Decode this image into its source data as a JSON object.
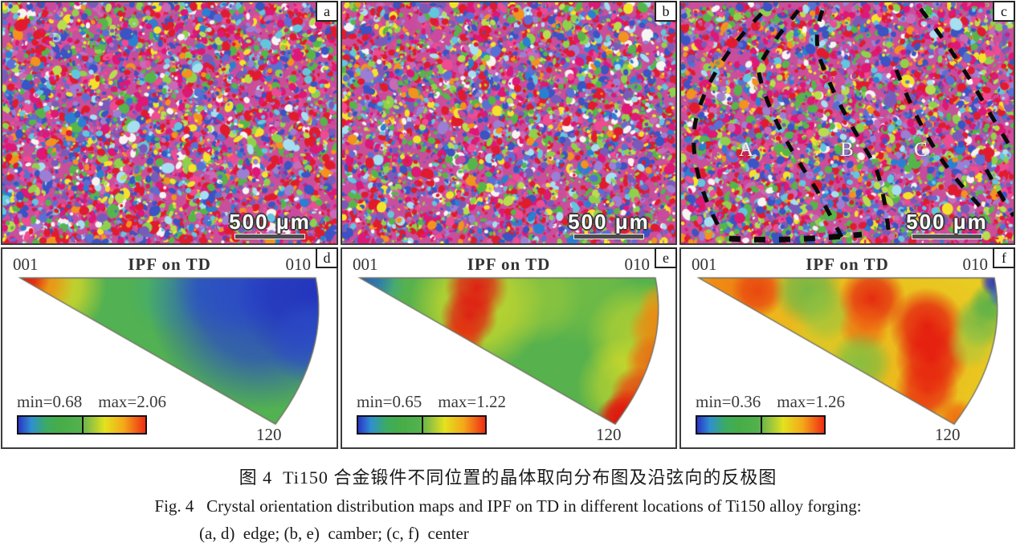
{
  "figure": {
    "ebsd_panels": [
      {
        "letter": "a",
        "scale_bar": "500 μm"
      },
      {
        "letter": "b",
        "scale_bar": "500 μm"
      },
      {
        "letter": "c",
        "scale_bar": "500 μm",
        "region_labels": [
          "A",
          "B",
          "C"
        ]
      }
    ],
    "ipf_panels": [
      {
        "letter": "d",
        "title": "IPF on TD",
        "corner_top_left": "001",
        "corner_top_right": "010",
        "corner_bottom": "120",
        "min_label": "min=0.68",
        "max_label": "max=2.06"
      },
      {
        "letter": "e",
        "title": "IPF on TD",
        "corner_top_left": "001",
        "corner_top_right": "010",
        "corner_bottom": "120",
        "min_label": "min=0.65",
        "max_label": "max=1.22"
      },
      {
        "letter": "f",
        "title": "IPF on TD",
        "corner_top_left": "001",
        "corner_top_right": "010",
        "corner_bottom": "120",
        "min_label": "min=0.36",
        "max_label": "max=1.26"
      }
    ],
    "caption": {
      "line_zh": "图 4  Ti150 合金锻件不同位置的晶体取向分布图及沿弦向的反极图",
      "line_en": "Fig. 4   Crystal orientation distribution maps and IPF on TD in different locations of Ti150 alloy forging:",
      "line_items": "(a, d)  edge; (b, e)  camber; (c, f)  center"
    }
  },
  "chart_data": [
    {
      "type": "heatmap",
      "panel": "a",
      "subtype": "EBSD orientation map",
      "location": "edge",
      "scale_bar": "500 μm",
      "appearance": "fine equiaxed multicolored grains (red/magenta/blue/green/purple speckle)"
    },
    {
      "type": "heatmap",
      "panel": "b",
      "subtype": "EBSD orientation map",
      "location": "camber",
      "scale_bar": "500 μm",
      "appearance": "fine equiaxed multicolored grains"
    },
    {
      "type": "heatmap",
      "panel": "c",
      "subtype": "EBSD orientation map",
      "location": "center",
      "scale_bar": "500 μm",
      "regions": [
        "A",
        "B",
        "C"
      ],
      "appearance": "multicolored grains with black dashed diagonal bands outlining regions A, B, C"
    },
    {
      "type": "heatmap",
      "panel": "d",
      "subtype": "inverse pole figure",
      "title": "IPF on TD",
      "corners": {
        "top_left": "001",
        "top_right": "010",
        "bottom": "120"
      },
      "min": 0.68,
      "max": 2.06,
      "intensity_field": "maximum (red) at 001 corner, blue low region toward 010, green elsewhere",
      "colorbar": [
        "#2a35c8",
        "#3cab62",
        "#e3e21e",
        "#ef2c14"
      ]
    },
    {
      "type": "heatmap",
      "panel": "e",
      "subtype": "inverse pole figure",
      "title": "IPF on TD",
      "corners": {
        "top_left": "001",
        "top_right": "010",
        "bottom": "120"
      },
      "min": 0.65,
      "max": 1.22,
      "intensity_field": "blue at 001 corner, red band between 001 and center, red along outer arc down to 120 tip, green field",
      "colorbar": [
        "#2a35c8",
        "#3cab62",
        "#e3e21e",
        "#ef2c14"
      ]
    },
    {
      "type": "heatmap",
      "panel": "f",
      "subtype": "inverse pole figure",
      "title": "IPF on TD",
      "corners": {
        "top_left": "001",
        "top_right": "010",
        "bottom": "120"
      },
      "min": 0.36,
      "max": 1.26,
      "intensity_field": "yellow-orange field with red vertical bands center-right, green patches, blue strip at 010 corner",
      "colorbar": [
        "#2a35c8",
        "#3cab62",
        "#e3e21e",
        "#ef2c14"
      ]
    }
  ],
  "colors": {
    "panel_border": "#3c3c3c",
    "colorbar_gradient": [
      "#2a35c8",
      "#2f8fd0",
      "#3cab62",
      "#52b14e",
      "#9cc63e",
      "#e3e21e",
      "#f4a81a",
      "#ef2c14"
    ],
    "dashed_outline": "#0a0a0a",
    "scale_bar_text": "#ffffff"
  }
}
